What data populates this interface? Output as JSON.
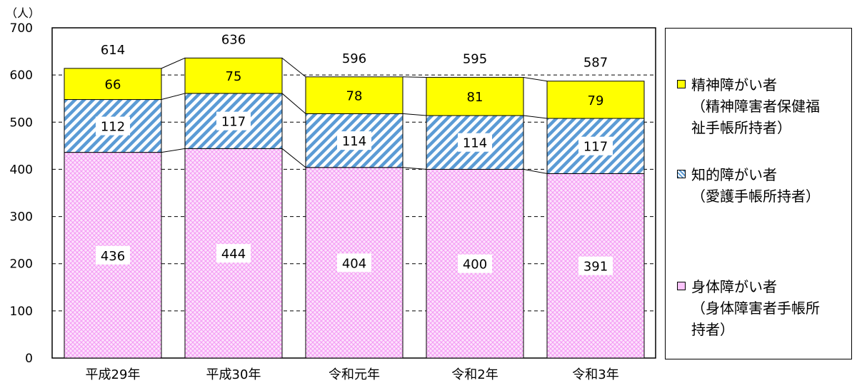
{
  "chart_data": {
    "type": "bar",
    "stacked": true,
    "unit_label": "（人）",
    "categories": [
      "平成29年",
      "平成30年",
      "令和元年",
      "令和2年",
      "令和3年"
    ],
    "series": [
      {
        "name": "身体障がい者",
        "name_sub": "（身体障害者手帳所\n持者）",
        "color": "#ff99ff",
        "pattern": "crosshatch",
        "values": [
          436,
          444,
          404,
          400,
          391
        ]
      },
      {
        "name": "知的障がい者",
        "name_sub": "（愛護手帳所持者）",
        "color": "#5b9bd5",
        "pattern": "diagonal-stripes",
        "values": [
          112,
          117,
          114,
          114,
          117
        ]
      },
      {
        "name": "精神障がい者",
        "name_sub": "（精神障害者保健福\n祉手帳所持者）",
        "color": "#ffff00",
        "pattern": "solid",
        "values": [
          66,
          75,
          78,
          81,
          79
        ]
      }
    ],
    "totals": [
      614,
      636,
      596,
      595,
      587
    ],
    "ylim": [
      0,
      700
    ],
    "yticks": [
      0,
      100,
      200,
      300,
      400,
      500,
      600,
      700
    ],
    "grid": "dashed",
    "legend_position": "right"
  },
  "legend": {
    "items": [
      {
        "label": "精神障がい者",
        "sub": "（精神障害者保健福\n祉手帳所持者）"
      },
      {
        "label": "知的障がい者",
        "sub": "（愛護手帳所持者）"
      },
      {
        "label": "身体障がい者",
        "sub": "（身体障害者手帳所\n持者）"
      }
    ]
  }
}
